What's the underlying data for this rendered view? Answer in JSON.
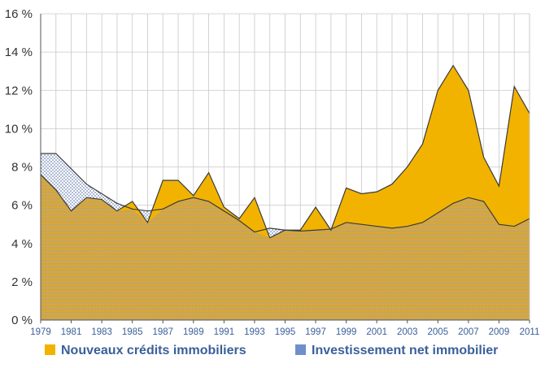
{
  "chart_data": {
    "type": "area",
    "title": "",
    "xlabel": "",
    "ylabel": "",
    "ylim": [
      0,
      16
    ],
    "yticks": [
      0,
      2,
      4,
      6,
      8,
      10,
      12,
      14,
      16
    ],
    "ytick_labels": [
      "0 %",
      "2 %",
      "4 %",
      "6 %",
      "8 %",
      "10 %",
      "12 %",
      "14 %",
      "16 %"
    ],
    "xlim": [
      1979,
      2011
    ],
    "xtick_labels": [
      "1979",
      "1981",
      "1983",
      "1985",
      "1987",
      "1989",
      "1991",
      "1993",
      "1995",
      "1997",
      "1999",
      "2001",
      "2003",
      "2005",
      "2007",
      "2009",
      "2011"
    ],
    "grid": true,
    "legend_position": "bottom",
    "x": [
      1979,
      1980,
      1981,
      1982,
      1983,
      1984,
      1985,
      1986,
      1987,
      1988,
      1989,
      1990,
      1991,
      1992,
      1993,
      1994,
      1995,
      1996,
      1997,
      1998,
      1999,
      2000,
      2001,
      2002,
      2003,
      2004,
      2005,
      2006,
      2007,
      2008,
      2009,
      2010,
      2011
    ],
    "series": [
      {
        "name": "Nouveaux crédits immobiliers",
        "color": "#f2b300",
        "values": [
          7.6,
          6.8,
          5.7,
          6.4,
          6.3,
          5.7,
          6.2,
          5.1,
          7.3,
          7.3,
          6.5,
          7.7,
          5.9,
          5.3,
          6.4,
          4.3,
          4.7,
          4.7,
          5.9,
          4.7,
          6.9,
          6.6,
          6.7,
          7.1,
          8.0,
          9.2,
          12.0,
          13.3,
          12.0,
          8.5,
          7.0,
          12.2,
          10.8
        ]
      },
      {
        "name": "Investissement net immobilier",
        "color": "#6f8fc8",
        "values": [
          8.7,
          8.7,
          7.9,
          7.1,
          6.6,
          6.1,
          5.8,
          5.7,
          5.8,
          6.2,
          6.4,
          6.2,
          5.7,
          5.2,
          4.6,
          4.8,
          4.7,
          4.65,
          4.7,
          4.75,
          5.1,
          5.0,
          4.9,
          4.8,
          4.9,
          5.1,
          5.6,
          6.1,
          6.4,
          6.2,
          5.0,
          4.9,
          5.3
        ]
      }
    ]
  }
}
